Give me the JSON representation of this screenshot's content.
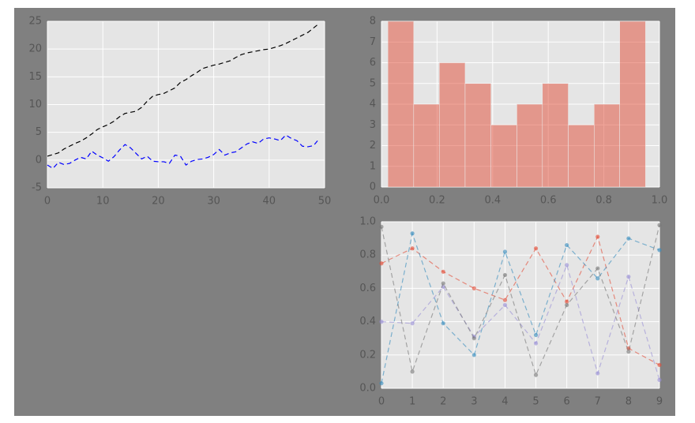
{
  "chart_data": [
    {
      "type": "line",
      "x": [
        0,
        1,
        2,
        3,
        4,
        5,
        6,
        7,
        8,
        9,
        10,
        11,
        12,
        13,
        14,
        15,
        16,
        17,
        18,
        19,
        20,
        21,
        22,
        23,
        24,
        25,
        26,
        27,
        28,
        29,
        30,
        31,
        32,
        33,
        34,
        35,
        36,
        37,
        38,
        39,
        40,
        41,
        42,
        43,
        44,
        45,
        46,
        47,
        48,
        49
      ],
      "series": [
        {
          "color": "#000000",
          "values": [
            0.7,
            1.0,
            1.3,
            2.0,
            2.5,
            3.0,
            3.4,
            4.0,
            4.7,
            5.5,
            6.0,
            6.4,
            7.0,
            7.8,
            8.4,
            8.6,
            8.8,
            9.5,
            10.6,
            11.5,
            11.8,
            12.0,
            12.5,
            13.0,
            14.0,
            14.5,
            15.2,
            15.8,
            16.5,
            16.8,
            17.1,
            17.3,
            17.6,
            17.9,
            18.5,
            19.0,
            19.3,
            19.5,
            19.7,
            19.9,
            20.0,
            20.3,
            20.6,
            21.0,
            21.5,
            22.0,
            22.5,
            23.0,
            23.8,
            24.6
          ]
        },
        {
          "color": "#0000ff",
          "values": [
            -0.9,
            -1.5,
            -0.4,
            -0.8,
            -0.6,
            0.0,
            0.5,
            0.2,
            1.6,
            0.9,
            0.4,
            -0.2,
            0.6,
            1.8,
            2.8,
            2.2,
            1.2,
            0.2,
            0.7,
            -0.2,
            -0.3,
            -0.3,
            -0.6,
            0.9,
            0.7,
            -0.9,
            -0.2,
            0.1,
            0.2,
            0.5,
            1.0,
            1.9,
            0.9,
            1.3,
            1.5,
            2.2,
            2.9,
            3.3,
            3.0,
            3.8,
            4.0,
            3.8,
            3.5,
            4.5,
            3.9,
            3.5,
            2.5,
            2.4,
            2.6,
            3.8
          ]
        }
      ],
      "xlim": [
        0,
        50
      ],
      "xticks": [
        0,
        10,
        20,
        30,
        40,
        50
      ],
      "ylim": [
        -5,
        25
      ],
      "yticks": [
        -5,
        0,
        5,
        10,
        15,
        20,
        25
      ],
      "grid": true,
      "line_style": "dashed"
    },
    {
      "type": "histogram",
      "bins": [
        0.023,
        0.116,
        0.208,
        0.301,
        0.394,
        0.487,
        0.579,
        0.672,
        0.765,
        0.857,
        0.95
      ],
      "values": [
        8,
        4,
        6,
        5,
        3,
        4,
        5,
        3,
        4,
        8
      ],
      "color": "#E24A33",
      "opacity": 0.5,
      "xlim": [
        0,
        1
      ],
      "xticks": [
        {
          "value": 0,
          "label": "0.0"
        },
        0.2,
        0.4,
        0.6,
        0.8,
        {
          "value": 1,
          "label": "1.0"
        }
      ],
      "ylim": [
        0,
        8
      ],
      "yticks": [
        0,
        1,
        2,
        3,
        4,
        5,
        6,
        7,
        8
      ],
      "grid": true
    },
    {
      "type": "line",
      "x": [
        0,
        1,
        2,
        3,
        4,
        5,
        6,
        7,
        8,
        9
      ],
      "series": [
        {
          "color": "#E24A33",
          "values": [
            0.75,
            0.84,
            0.7,
            0.6,
            0.53,
            0.84,
            0.52,
            0.91,
            0.24,
            0.14
          ]
        },
        {
          "color": "#348ABD",
          "values": [
            0.03,
            0.93,
            0.39,
            0.2,
            0.82,
            0.32,
            0.86,
            0.66,
            0.9,
            0.83
          ]
        },
        {
          "color": "#988ED5",
          "values": [
            0.4,
            0.39,
            0.61,
            0.31,
            0.5,
            0.27,
            0.74,
            0.09,
            0.67,
            0.05
          ]
        },
        {
          "color": "#777777",
          "values": [
            0.97,
            0.1,
            0.63,
            0.3,
            0.68,
            0.08,
            0.5,
            0.72,
            0.22,
            0.98
          ]
        }
      ],
      "xlim": [
        0,
        9
      ],
      "xticks": [
        0,
        1,
        2,
        3,
        4,
        5,
        6,
        7,
        8,
        9
      ],
      "ylim": [
        0,
        1
      ],
      "yticks": [
        {
          "value": 0,
          "label": "0.0"
        },
        0.2,
        0.4,
        0.6,
        0.8,
        {
          "value": 1,
          "label": "1.0"
        }
      ],
      "grid": true,
      "line_style": "dashed",
      "markers": true,
      "opacity": 0.6
    }
  ]
}
